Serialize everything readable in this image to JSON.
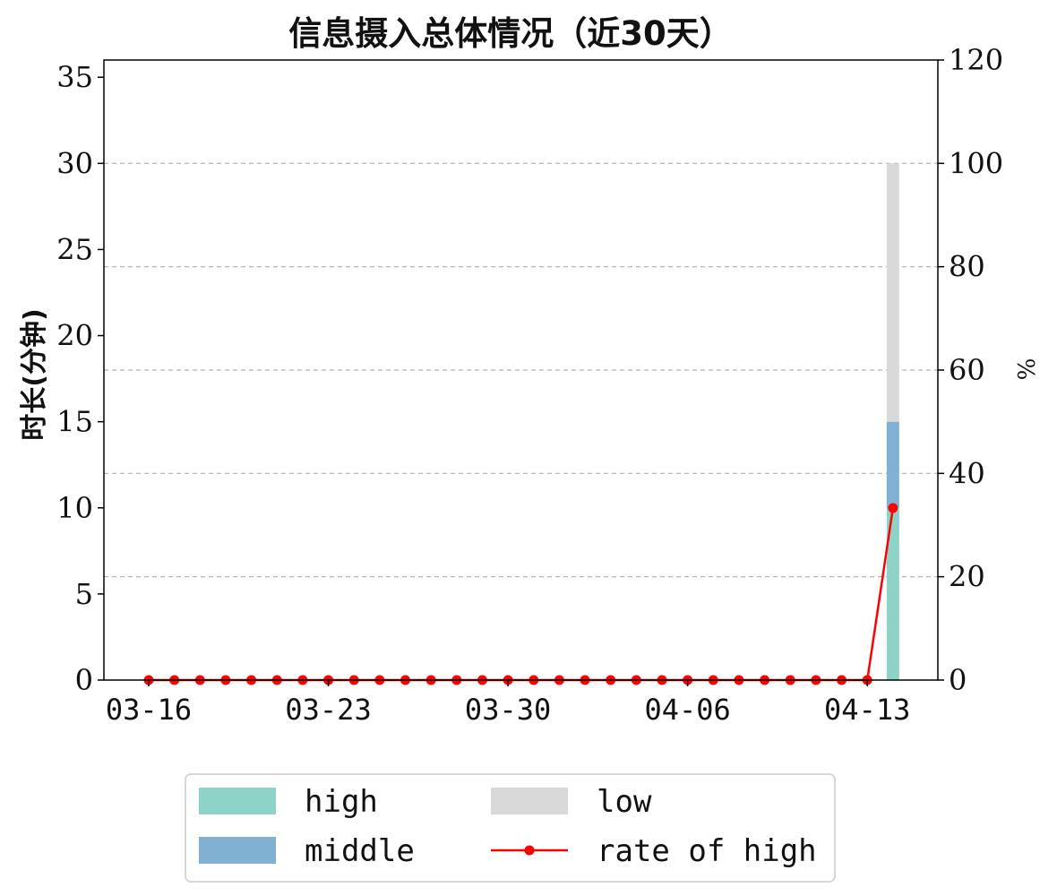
{
  "chart_data": {
    "type": "bar",
    "title": "信息摄入总体情况（近30天）",
    "ylabel": "时长(分钟)",
    "y2label": "%",
    "ylim": [
      0,
      36
    ],
    "y2lim": [
      0,
      120
    ],
    "yticks": [
      0,
      5,
      10,
      15,
      20,
      25,
      30,
      35
    ],
    "y2ticks": [
      0,
      20,
      40,
      60,
      80,
      100,
      120
    ],
    "xtick_labels": [
      {
        "label": "03-16",
        "index": 0
      },
      {
        "label": "03-23",
        "index": 7
      },
      {
        "label": "03-30",
        "index": 14
      },
      {
        "label": "04-06",
        "index": 21
      },
      {
        "label": "04-13",
        "index": 28
      }
    ],
    "x": [
      "03-16",
      "03-17",
      "03-18",
      "03-19",
      "03-20",
      "03-21",
      "03-22",
      "03-23",
      "03-24",
      "03-25",
      "03-26",
      "03-27",
      "03-28",
      "03-29",
      "03-30",
      "03-31",
      "04-01",
      "04-02",
      "04-03",
      "04-04",
      "04-05",
      "04-06",
      "04-07",
      "04-08",
      "04-09",
      "04-10",
      "04-11",
      "04-12",
      "04-13",
      "04-14"
    ],
    "stacked": true,
    "series": [
      {
        "name": "high",
        "color": "#8dd3c7",
        "values": [
          0,
          0,
          0,
          0,
          0,
          0,
          0,
          0,
          0,
          0,
          0,
          0,
          0,
          0,
          0,
          0,
          0,
          0,
          0,
          0,
          0,
          0,
          0,
          0,
          0,
          0,
          0,
          0,
          0,
          10
        ]
      },
      {
        "name": "middle",
        "color": "#80b1d3",
        "values": [
          0,
          0,
          0,
          0,
          0,
          0,
          0,
          0,
          0,
          0,
          0,
          0,
          0,
          0,
          0,
          0,
          0,
          0,
          0,
          0,
          0,
          0,
          0,
          0,
          0,
          0,
          0,
          0,
          0,
          5
        ]
      },
      {
        "name": "low",
        "color": "#d9d9d9",
        "values": [
          0,
          0,
          0,
          0,
          0,
          0,
          0,
          0,
          0,
          0,
          0,
          0,
          0,
          0,
          0,
          0,
          0,
          0,
          0,
          0,
          0,
          0,
          0,
          0,
          0,
          0,
          0,
          0,
          0,
          15
        ]
      }
    ],
    "line_series": {
      "name": "rate of high",
      "color": "#ff0000",
      "axis": "right",
      "values": [
        0,
        0,
        0,
        0,
        0,
        0,
        0,
        0,
        0,
        0,
        0,
        0,
        0,
        0,
        0,
        0,
        0,
        0,
        0,
        0,
        0,
        0,
        0,
        0,
        0,
        0,
        0,
        0,
        0,
        33.3
      ]
    },
    "grid": "horizontal-dashed",
    "legend_position": "bottom-center"
  },
  "legend": {
    "items": [
      {
        "label": "high",
        "kind": "patch",
        "color": "#8dd3c7"
      },
      {
        "label": "low",
        "kind": "patch",
        "color": "#d9d9d9"
      },
      {
        "label": "middle",
        "kind": "patch",
        "color": "#80b1d3"
      },
      {
        "label": "rate of high",
        "kind": "line",
        "color": "#ff0000"
      }
    ]
  }
}
